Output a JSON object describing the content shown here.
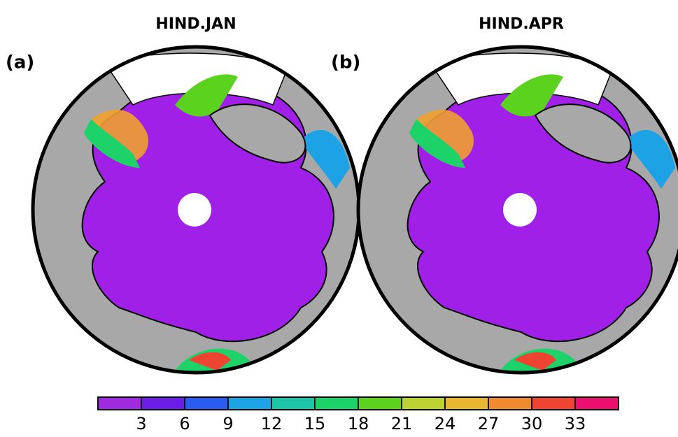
{
  "panels": [
    {
      "title": "HIND.JAN",
      "label": "(a)"
    },
    {
      "title": "HIND.APR",
      "label": "(b)"
    }
  ],
  "colorbar": {
    "clim": [
      0,
      36
    ],
    "ticks": [
      3,
      6,
      9,
      12,
      15,
      18,
      21,
      24,
      27,
      30,
      33
    ],
    "colors": [
      "#a02ae0",
      "#6a1ee6",
      "#2a5cf0",
      "#1ea2e6",
      "#1ec4a6",
      "#1ed26a",
      "#5ad21e",
      "#bcd232",
      "#e8b630",
      "#f08a30",
      "#f04432",
      "#ea1070"
    ]
  }
}
